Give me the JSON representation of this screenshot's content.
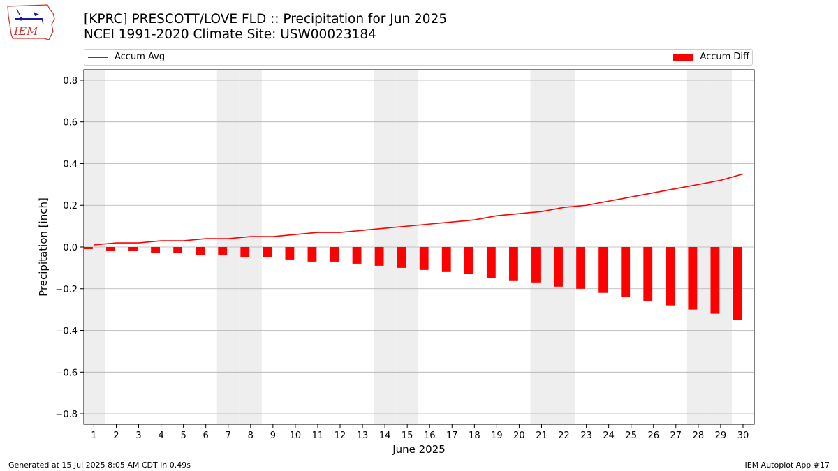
{
  "header": {
    "title_line1": "[KPRC] PRESCOTT/LOVE FLD :: Precipitation for Jun 2025",
    "title_line2": "NCEI 1991-2020 Climate Site: USW00023184"
  },
  "logo": {
    "text": "IEM"
  },
  "footer": {
    "generated": "Generated at 15 Jul 2025 8:05 AM CDT in 0.49s",
    "app": "IEM Autoplot App #17"
  },
  "colors": {
    "series": "#ff0000",
    "weekend_band": "#eeeeee",
    "grid": "#b0b0b0"
  },
  "chart_data": {
    "type": "bar",
    "xlabel": "June 2025",
    "ylabel": "Precipitation [inch]",
    "ylim": [
      -0.85,
      0.85
    ],
    "yticks": [
      -0.8,
      -0.6,
      -0.4,
      -0.2,
      0.0,
      0.2,
      0.4,
      0.6,
      0.8
    ],
    "ytick_labels": [
      "−0.8",
      "−0.6",
      "−0.4",
      "−0.2",
      "0.0",
      "0.2",
      "0.4",
      "0.6",
      "0.8"
    ],
    "x": [
      1,
      2,
      3,
      4,
      5,
      6,
      7,
      8,
      9,
      10,
      11,
      12,
      13,
      14,
      15,
      16,
      17,
      18,
      19,
      20,
      21,
      22,
      23,
      24,
      25,
      26,
      27,
      28,
      29,
      30
    ],
    "x_tick_labels": [
      "1",
      "2",
      "3",
      "4",
      "5",
      "6",
      "7",
      "8",
      "9",
      "10",
      "11",
      "12",
      "13",
      "14",
      "15",
      "16",
      "17",
      "18",
      "19",
      "20",
      "21",
      "22",
      "23",
      "24",
      "25",
      "26",
      "27",
      "28",
      "29",
      "30"
    ],
    "weekend_days": [
      1,
      7,
      8,
      14,
      15,
      21,
      22,
      28,
      29
    ],
    "grid": true,
    "legend_position": "top",
    "series": [
      {
        "name": "Accum Avg",
        "kind": "line",
        "values": [
          0.01,
          0.02,
          0.02,
          0.03,
          0.03,
          0.04,
          0.04,
          0.05,
          0.05,
          0.06,
          0.07,
          0.07,
          0.08,
          0.09,
          0.1,
          0.11,
          0.12,
          0.13,
          0.15,
          0.16,
          0.17,
          0.19,
          0.2,
          0.22,
          0.24,
          0.26,
          0.28,
          0.3,
          0.32,
          0.35
        ]
      },
      {
        "name": "Accum Diff",
        "kind": "bar",
        "values": [
          -0.01,
          -0.02,
          -0.02,
          -0.03,
          -0.03,
          -0.04,
          -0.04,
          -0.05,
          -0.05,
          -0.06,
          -0.07,
          -0.07,
          -0.08,
          -0.09,
          -0.1,
          -0.11,
          -0.12,
          -0.13,
          -0.15,
          -0.16,
          -0.17,
          -0.19,
          -0.2,
          -0.22,
          -0.24,
          -0.26,
          -0.28,
          -0.3,
          -0.32,
          -0.35
        ]
      }
    ]
  }
}
